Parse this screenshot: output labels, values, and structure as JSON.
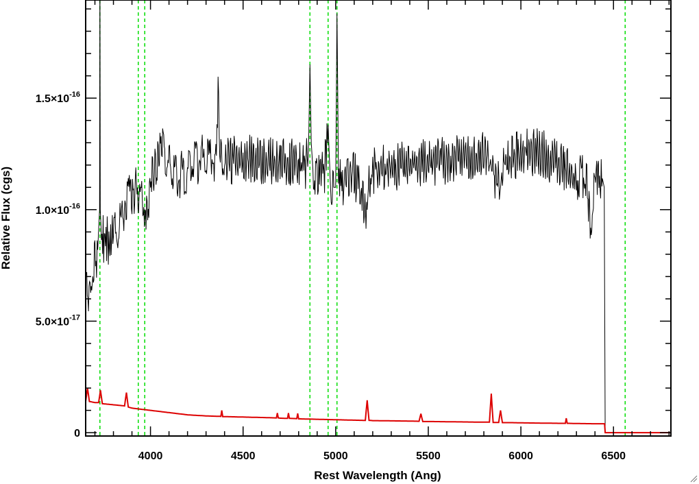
{
  "chart_data": {
    "type": "line",
    "title": "",
    "xlabel": "Rest Wavelength (Ang)",
    "ylabel": "Relative Flux (cgs)",
    "xlim": [
      3650,
      6810
    ],
    "ylim": [
      -1.5e-18,
      1.94e-16
    ],
    "x_ticks": [
      {
        "value": 4000,
        "label": "4000"
      },
      {
        "value": 4500,
        "label": "4500"
      },
      {
        "value": 5000,
        "label": "5000"
      },
      {
        "value": 5500,
        "label": "5500"
      },
      {
        "value": 6000,
        "label": "6000"
      },
      {
        "value": 6500,
        "label": "6500"
      }
    ],
    "y_ticks": [
      {
        "value": 0,
        "mant": "0",
        "exp": ""
      },
      {
        "value": 5e-17,
        "mant": "5.0×10",
        "exp": "-17"
      },
      {
        "value": 1e-16,
        "mant": "1.0×10",
        "exp": "-16"
      },
      {
        "value": 1.5e-16,
        "mant": "1.5×10",
        "exp": "-16"
      }
    ],
    "x_minor_step": 100,
    "y_minor_step": 1e-17,
    "grid": false,
    "vertical_lines": {
      "color": "#00dd00",
      "style": "dashed",
      "x": [
        3727,
        3934,
        3969,
        4861,
        4959,
        5007,
        6563
      ]
    },
    "series": [
      {
        "role": "spectrum",
        "color": "#000000",
        "x": [
          3650,
          3665,
          3680,
          3700,
          3715,
          3725,
          3727,
          3729,
          3735,
          3760,
          3800,
          3850,
          3880,
          3900,
          3930,
          3950,
          3970,
          3985,
          4000,
          4030,
          4060,
          4080,
          4100,
          4150,
          4200,
          4250,
          4300,
          4350,
          4365,
          4380,
          4400,
          4500,
          4600,
          4700,
          4800,
          4840,
          4855,
          4861,
          4868,
          4880,
          4900,
          4940,
          4959,
          4970,
          4990,
          5000,
          5007,
          5015,
          5040,
          5100,
          5170,
          5180,
          5200,
          5300,
          5400,
          5500,
          5600,
          5700,
          5800,
          5890,
          5900,
          6000,
          6100,
          6200,
          6300,
          6350,
          6380,
          6400,
          6440,
          6450,
          6455
        ],
        "y": [
          7e-17,
          6.4e-17,
          7.2e-17,
          7.8e-17,
          8.2e-17,
          1e-16,
          2.1e-16,
          1e-16,
          8.8e-17,
          8.6e-17,
          8.7e-17,
          9.6e-17,
          1.05e-16,
          1.08e-16,
          1.1e-16,
          1.07e-16,
          1e-16,
          1.03e-16,
          1.12e-16,
          1.22e-16,
          1.27e-16,
          1.25e-16,
          1.2e-16,
          1.15e-16,
          1.18e-16,
          1.22e-16,
          1.24e-16,
          1.23e-16,
          1.5e-16,
          1.24e-16,
          1.22e-16,
          1.23e-16,
          1.22e-16,
          1.21e-16,
          1.22e-16,
          1.2e-16,
          1.35e-16,
          1.65e-16,
          1.3e-16,
          1.14e-16,
          1.16e-16,
          1.18e-16,
          1.38e-16,
          1.15e-16,
          1.1e-16,
          1.1e-16,
          1.88e-16,
          1.15e-16,
          1.12e-16,
          1.16e-16,
          1e-16,
          1.15e-16,
          1.18e-16,
          1.19e-16,
          1.2e-16,
          1.21e-16,
          1.22e-16,
          1.23e-16,
          1.25e-16,
          1.1e-16,
          1.2e-16,
          1.26e-16,
          1.26e-16,
          1.2e-16,
          1.14e-16,
          1.15e-16,
          9.2e-17,
          1.13e-16,
          1.14e-16,
          1.1e-16,
          0
        ]
      },
      {
        "role": "error",
        "color": "#dd0000",
        "x": [
          3650,
          3660,
          3670,
          3700,
          3720,
          3730,
          3740,
          3800,
          3860,
          3870,
          3880,
          3900,
          4000,
          4100,
          4200,
          4300,
          4380,
          4385,
          4390,
          4400,
          4500,
          4600,
          4680,
          4685,
          4690,
          4700,
          4740,
          4745,
          4750,
          4790,
          4795,
          4800,
          4900,
          5000,
          5100,
          5160,
          5170,
          5180,
          5200,
          5300,
          5400,
          5450,
          5460,
          5470,
          5500,
          5600,
          5700,
          5800,
          5830,
          5840,
          5850,
          5880,
          5890,
          5900,
          5950,
          6000,
          6100,
          6200,
          6240,
          6245,
          6250,
          6300,
          6400,
          6440,
          6452,
          6455,
          6500,
          6600,
          6700,
          6810
        ],
        "y": [
          1.4e-17,
          2e-17,
          1.4e-17,
          1.35e-17,
          1.35e-17,
          1.9e-17,
          1.3e-17,
          1.25e-17,
          1.2e-17,
          1.8e-17,
          1.15e-17,
          1.1e-17,
          1e-17,
          9e-18,
          8e-18,
          7.5e-18,
          7.3e-18,
          1e-17,
          7.2e-18,
          7.2e-18,
          7e-18,
          6.8e-18,
          6.6e-18,
          8.8e-18,
          6.6e-18,
          6.5e-18,
          6.4e-18,
          8.8e-18,
          6.4e-18,
          6.3e-18,
          8.6e-18,
          6.2e-18,
          6e-18,
          5.8e-18,
          5.6e-18,
          5.5e-18,
          1.45e-17,
          5.5e-18,
          5.4e-18,
          5.3e-18,
          5.2e-18,
          5.1e-18,
          8.5e-18,
          5e-18,
          5e-18,
          4.9e-18,
          4.8e-18,
          4.7e-18,
          4.7e-18,
          1.75e-17,
          4.6e-18,
          4.6e-18,
          1e-17,
          4.5e-18,
          4.5e-18,
          4.4e-18,
          4.3e-18,
          4.2e-18,
          4.2e-18,
          6.5e-18,
          4.2e-18,
          4.1e-18,
          4e-18,
          4e-18,
          4e-18,
          0,
          0,
          0,
          0,
          0
        ]
      }
    ]
  }
}
